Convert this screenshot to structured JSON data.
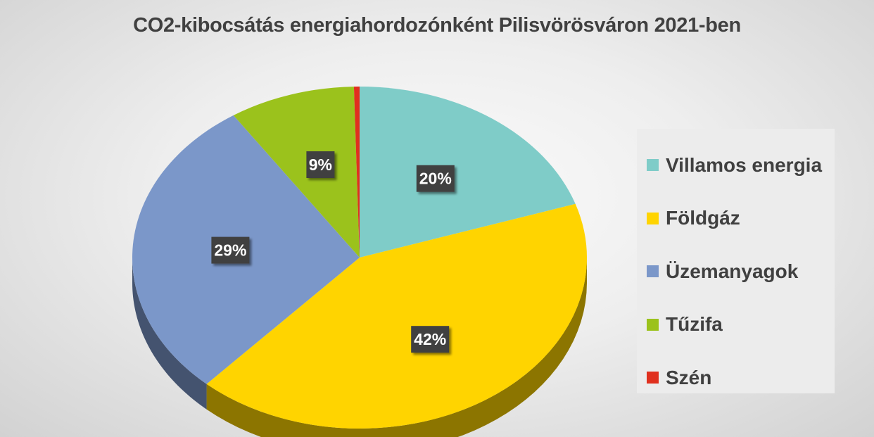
{
  "chart_data": {
    "type": "pie",
    "title": "CO2-kibocsátás energiahordozónként Pilisvörösváron 2021-ben",
    "categories": [
      "Villamos energia",
      "Földgáz",
      "Üzemanyagok",
      "Tűzifa",
      "Szén"
    ],
    "values": [
      20,
      42,
      29,
      9,
      0.4
    ],
    "data_labels": [
      "20%",
      "42%",
      "29%",
      "9%",
      ""
    ],
    "colors": [
      "#7fccc8",
      "#ffd400",
      "#7b97c9",
      "#9bc21c",
      "#e0301e"
    ],
    "legend_position": "right",
    "style": "3d"
  }
}
